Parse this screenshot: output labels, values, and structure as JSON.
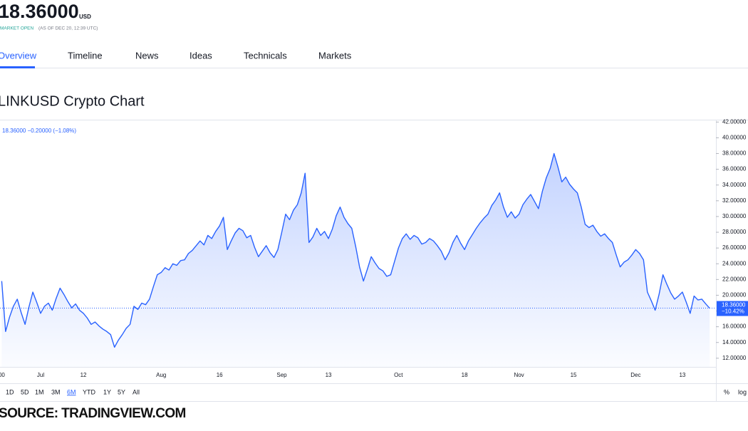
{
  "header": {
    "price": "18.36000",
    "currency": "USD",
    "status": "MARKET OPEN",
    "as_of": "(AS OF DEC 20, 12:39 UTC)"
  },
  "tabs": [
    "Overview",
    "Timeline",
    "News",
    "Ideas",
    "Technicals",
    "Markets"
  ],
  "chart_data": {
    "type": "line",
    "title": "LINKUSD Crypto Chart",
    "legend": "18.36000 −0.20000 (−1.08%)",
    "last_price_label": "18.36000",
    "change_label": "−10.42%",
    "color": "#2962ff",
    "categories": [
      "00",
      null,
      null,
      null,
      null,
      null,
      null,
      null,
      null,
      null,
      "Jul",
      null,
      null,
      null,
      null,
      null,
      null,
      null,
      null,
      null,
      null,
      "12",
      null,
      null,
      null,
      null,
      null,
      null,
      null,
      null,
      null,
      null,
      null,
      null,
      null,
      null,
      null,
      null,
      null,
      null,
      null,
      "Aug",
      null,
      null,
      null,
      null,
      null,
      null,
      null,
      null,
      null,
      null,
      null,
      null,
      null,
      null,
      "16",
      null,
      null,
      null,
      null,
      null,
      null,
      null,
      null,
      null,
      null,
      null,
      null,
      null,
      null,
      null,
      "Sep",
      null,
      null,
      null,
      null,
      null,
      null,
      null,
      null,
      null,
      null,
      null,
      "13",
      null,
      null,
      null,
      null,
      null,
      null,
      null,
      null,
      null,
      null,
      null,
      null,
      null,
      null,
      null,
      null,
      null,
      "Oct",
      null,
      null,
      null,
      null,
      null,
      null,
      null,
      null,
      null,
      null,
      null,
      null,
      null,
      null,
      null,
      null,
      "18",
      null,
      null,
      null,
      null,
      null,
      null,
      null,
      null,
      null,
      null,
      null,
      null,
      null,
      "Nov",
      null,
      null,
      null,
      null,
      null,
      null,
      null,
      null,
      null,
      null,
      null,
      null,
      null,
      "15",
      null,
      null,
      null,
      null,
      null,
      null,
      null,
      null,
      null,
      null,
      null,
      null,
      null,
      null,
      null,
      "Dec",
      null,
      null,
      null,
      null,
      null,
      null,
      null,
      null,
      null,
      null,
      null,
      "13",
      null,
      null,
      null,
      null,
      null,
      null,
      null
    ],
    "values": [
      21.8,
      15.4,
      17.2,
      18.6,
      19.5,
      17.8,
      16.3,
      18.5,
      20.4,
      19.1,
      17.7,
      18.6,
      19,
      18.1,
      19.6,
      20.9,
      20.1,
      19.2,
      18.4,
      18.9,
      18.1,
      17.7,
      17.1,
      16.3,
      16.6,
      16.1,
      15.7,
      15.4,
      15,
      13.4,
      14.3,
      15,
      15.8,
      16.3,
      18.6,
      18.2,
      19,
      18.8,
      19.5,
      21.1,
      22.6,
      22.9,
      23.5,
      23.2,
      24,
      23.8,
      24.4,
      24.5,
      25.3,
      25.7,
      26.3,
      26.9,
      26.4,
      27.6,
      27.2,
      28.1,
      28.8,
      29.9,
      25.8,
      26.9,
      27.9,
      28.5,
      28.2,
      27.3,
      27.6,
      26.1,
      24.9,
      25.6,
      26.3,
      25.4,
      24.8,
      25.8,
      28,
      30.3,
      29.6,
      30.8,
      31.5,
      33,
      35.5,
      26.7,
      27.4,
      28.5,
      27.6,
      28.1,
      27.2,
      28.4,
      30.1,
      31.2,
      29.9,
      29.1,
      28.5,
      26.2,
      23.6,
      21.8,
      23.3,
      24.9,
      24.1,
      23.4,
      23.1,
      22.4,
      22.6,
      24.3,
      26,
      27.2,
      27.8,
      27.1,
      27.6,
      27.3,
      26.5,
      26.7,
      27.2,
      26.9,
      26.3,
      25.6,
      24.5,
      25.4,
      26.7,
      27.6,
      26.6,
      25.8,
      26.9,
      27.7,
      28.5,
      29.2,
      29.8,
      30.3,
      31.4,
      32.1,
      33,
      31.2,
      29.9,
      30.6,
      29.8,
      30.3,
      31.5,
      32.2,
      32.8,
      31.9,
      31,
      33.2,
      34.9,
      36.1,
      38,
      36.3,
      34.4,
      35,
      34.1,
      33.5,
      33,
      31.2,
      29,
      28.6,
      28.9,
      28.1,
      27.5,
      27.8,
      27.2,
      26.7,
      25.1,
      23.6,
      24.2,
      24.5,
      25.1,
      25.8,
      25.3,
      24.5,
      20.4,
      19.3,
      18.1,
      20.1,
      22.6,
      21.4,
      20.3,
      19.5,
      19.9,
      20.4,
      19.1,
      17.7,
      19.9,
      19.4,
      19.5,
      18.9,
      18.36
    ],
    "ylim": [
      10.9,
      42.3
    ],
    "yticks": [
      {
        "value": 12,
        "label": "12.00000"
      },
      {
        "value": 14,
        "label": "14.00000"
      },
      {
        "value": 16,
        "label": "16.00000"
      },
      {
        "value": 18,
        "label": "18.00000"
      },
      {
        "value": 20,
        "label": "20.00000"
      },
      {
        "value": 22,
        "label": "22.00000"
      },
      {
        "value": 24,
        "label": "24.00000"
      },
      {
        "value": 26,
        "label": "26.00000"
      },
      {
        "value": 28,
        "label": "28.00000"
      },
      {
        "value": 30,
        "label": "30.00000"
      },
      {
        "value": 32,
        "label": "32.00000"
      },
      {
        "value": 34,
        "label": "34.00000"
      },
      {
        "value": 36,
        "label": "36.00000"
      },
      {
        "value": 38,
        "label": "38.00000"
      },
      {
        "value": 40,
        "label": "40.00000"
      },
      {
        "value": 42,
        "label": "42.00000"
      }
    ],
    "grid": false
  },
  "range_buttons": [
    "1D",
    "5D",
    "1M",
    "3M",
    "6M",
    "YTD",
    "1Y",
    "5Y",
    "All"
  ],
  "scale_buttons": [
    "%",
    "log"
  ],
  "source": "SOURCE: TRADINGVIEW.COM"
}
